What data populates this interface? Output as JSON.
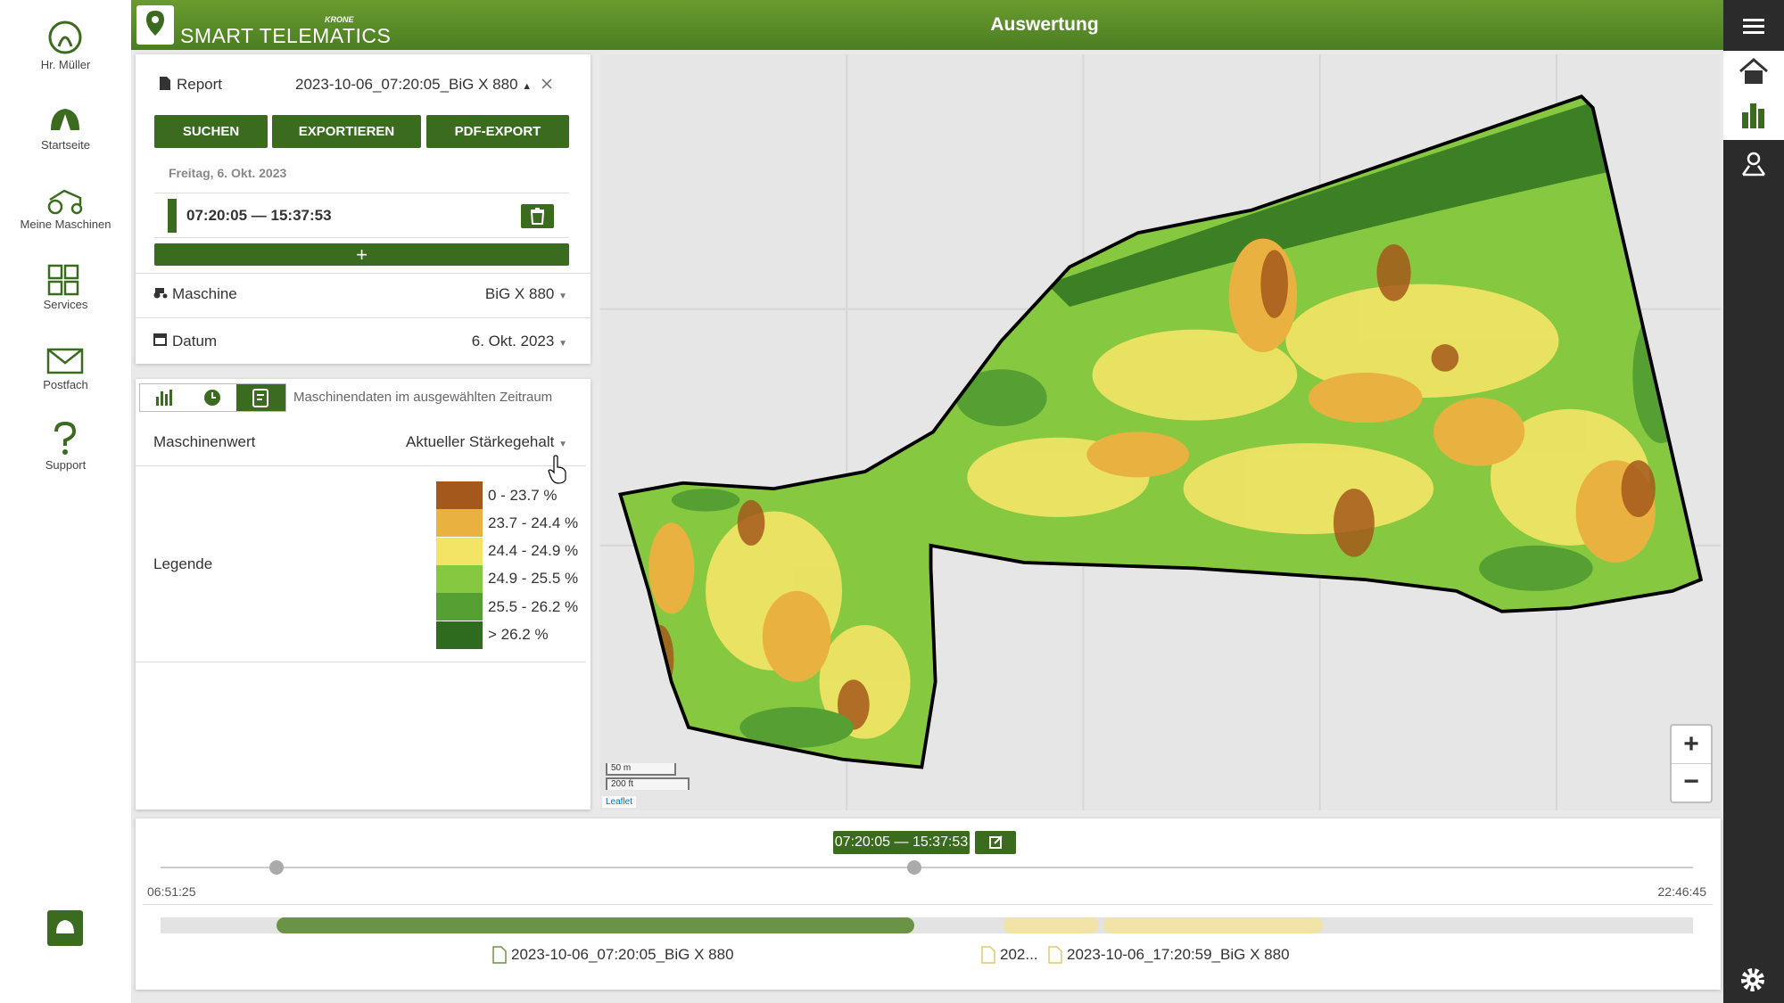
{
  "sidebar": {
    "items": [
      "Hr. Müller",
      "Startseite",
      "Meine Maschinen",
      "Services",
      "Postfach",
      "Support"
    ]
  },
  "header": {
    "brand_small": "KRONE",
    "brand": "SMART TELEMATICS",
    "title": "Auswertung"
  },
  "report": {
    "label": "Report",
    "name": "2023-10-06_07:20:05_BiG X 880",
    "buttons": [
      "SUCHEN",
      "EXPORTIEREN",
      "PDF-EXPORT"
    ],
    "date": "Freitag, 6. Okt. 2023",
    "range": "07:20:05 — 15:37:53",
    "add": "+"
  },
  "filters": [
    {
      "label": "Maschine",
      "value": "BiG X 880"
    },
    {
      "label": "Datum",
      "value": "6. Okt. 2023"
    }
  ],
  "machine_data": {
    "caption": "Maschinendaten im ausgewählten Zeitraum",
    "value_label": "Maschinenwert",
    "value": "Aktueller Stärkegehalt",
    "legend_label": "Legende",
    "legend": [
      {
        "label": "0 - 23.7 %",
        "color": "#a5581b"
      },
      {
        "label": "23.7 - 24.4 %",
        "color": "#e9b240"
      },
      {
        "label": "24.4 - 24.9 %",
        "color": "#f4e466"
      },
      {
        "label": "24.9 - 25.5 %",
        "color": "#86c940"
      },
      {
        "label": "25.5 - 26.2 %",
        "color": "#56a033"
      },
      {
        "label": "> 26.2 %",
        "color": "#2f6b1f"
      }
    ]
  },
  "map": {
    "scale": [
      "50 m",
      "200 ft"
    ],
    "attribution": "Leaflet",
    "zoom": [
      "+",
      "−"
    ]
  },
  "timeline": {
    "range": "07:20:05 — 15:37:53",
    "start": "06:51:25",
    "end": "22:46:45",
    "files": [
      "2023-10-06_07:20:05_BiG X 880",
      "202...",
      "2023-10-06_17:20:59_BiG X 880"
    ]
  }
}
